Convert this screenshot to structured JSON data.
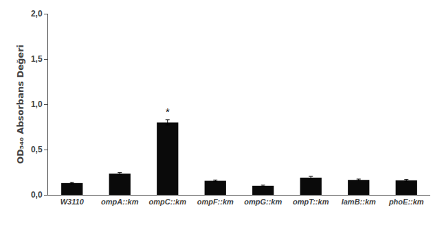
{
  "chart_data": {
    "type": "bar",
    "categories": [
      "W3110",
      "ompA::km",
      "ompC::km",
      "ompF::km",
      "ompG::km",
      "ompT::km",
      "lamB::km",
      "phoE::km"
    ],
    "values": [
      0.13,
      0.235,
      0.8,
      0.155,
      0.1,
      0.19,
      0.165,
      0.16
    ],
    "errors": [
      0.01,
      0.01,
      0.028,
      0.009,
      0.007,
      0.014,
      0.009,
      0.009
    ],
    "color": "#0a0a0a",
    "ylabel": "OD₅₄₀ Absorbans Değeri",
    "ylim": [
      0.0,
      2.0
    ],
    "yticks": [
      {
        "value": 0.0,
        "label": "0,0"
      },
      {
        "value": 0.5,
        "label": "0,5"
      },
      {
        "value": 1.0,
        "label": "1,0"
      },
      {
        "value": 1.5,
        "label": "1,5"
      },
      {
        "value": 2.0,
        "label": "2,0"
      }
    ],
    "annotations": [
      {
        "text": "*",
        "category": "ompC::km"
      }
    ],
    "grid": false
  }
}
